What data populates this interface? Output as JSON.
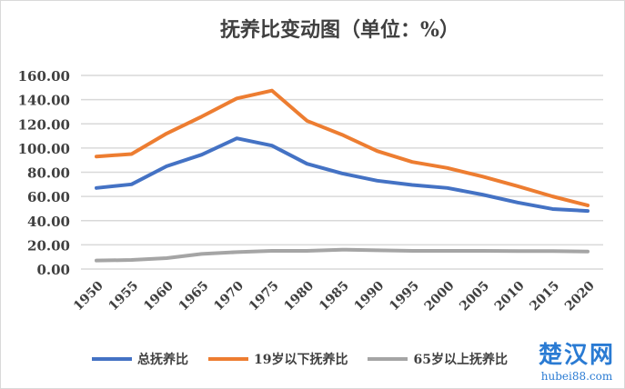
{
  "chart_data": {
    "type": "line",
    "title": "抚养比变动图（单位：%）",
    "xlabel": "",
    "ylabel": "",
    "ylim": [
      0,
      160
    ],
    "yticks": [
      "0.00",
      "20.00",
      "40.00",
      "60.00",
      "80.00",
      "100.00",
      "120.00",
      "140.00",
      "160.00"
    ],
    "grid": true,
    "legend": "bottom",
    "categories": [
      "1950",
      "1955",
      "1960",
      "1965",
      "1970",
      "1975",
      "1980",
      "1985",
      "1990",
      "1995",
      "2000",
      "2005",
      "2010",
      "2015",
      "2020"
    ],
    "series": [
      {
        "name": "总抚养比",
        "color": "#4472c4",
        "values": [
          67,
          70,
          85,
          94.5,
          108,
          102,
          87,
          79,
          73,
          69.5,
          67,
          61.5,
          55,
          49.6,
          48
        ]
      },
      {
        "name": "19岁以下抚养比",
        "color": "#ed7d31",
        "values": [
          93,
          95,
          112,
          126,
          141,
          147.5,
          122.5,
          111,
          97.5,
          88.5,
          83.5,
          76.5,
          68.5,
          60,
          52.6
        ]
      },
      {
        "name": "65岁以上抚养比",
        "color": "#a5a5a5",
        "values": [
          7,
          7.5,
          9,
          12.5,
          14,
          15,
          15,
          16,
          15.5,
          15,
          15,
          15,
          14.8,
          14.8,
          14.5
        ]
      }
    ]
  },
  "watermark": {
    "line1": "楚汉网",
    "line2": "hubei88.com"
  }
}
